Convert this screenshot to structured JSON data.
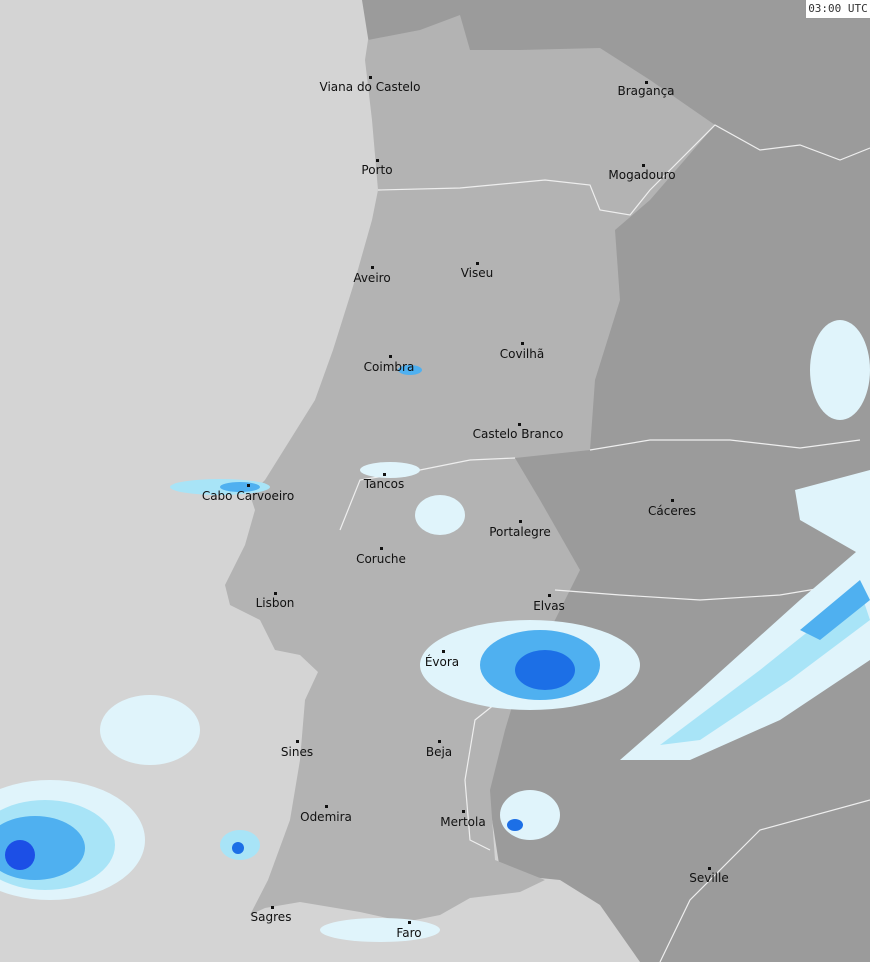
{
  "timestamp": "03:00 UTC",
  "colors": {
    "sea": "#d4d4d4",
    "portugal": "#b3b3b3",
    "spain": "#9b9b9b",
    "border": "#f0f0f0",
    "rain_light": "#e0f4fb",
    "rain_moderate": "#a8e4f7",
    "rain_heavy": "#4fb0f0",
    "rain_intense": "#1c6fe6"
  },
  "cities": [
    "Viana do Castelo",
    "Bragança",
    "Porto",
    "Mogadouro",
    "Aveiro",
    "Viseu",
    "Coimbra",
    "Covilhã",
    "Castelo Branco",
    "Cabo Carvoeiro",
    "Tancos",
    "Cáceres",
    "Portalegre",
    "Coruche",
    "Elvas",
    "Lisbon",
    "Évora",
    "Sines",
    "Beja",
    "Odemira",
    "Mertola",
    "Seville",
    "Sagres",
    "Faro"
  ]
}
